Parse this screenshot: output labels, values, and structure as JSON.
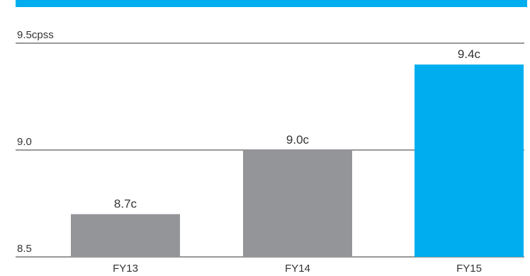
{
  "chart_data": {
    "type": "bar",
    "categories": [
      "FY13",
      "FY14",
      "FY15"
    ],
    "values": [
      8.7,
      9.0,
      9.4
    ],
    "value_labels": [
      "8.7c",
      "9.0c",
      "9.4c"
    ],
    "ylim": [
      8.5,
      9.5
    ],
    "yticks": [
      8.5,
      9.0,
      9.5
    ],
    "ytick_labels": [
      "8.5",
      "9.0",
      "9.5cpss"
    ],
    "title": "",
    "xlabel": "",
    "ylabel": "",
    "grid": true,
    "colors": {
      "bar_default": "#939598",
      "bar_highlight": "#00aeef",
      "top_rule": "#00aeef",
      "gridline": "#333333"
    },
    "highlight_index": 2
  }
}
